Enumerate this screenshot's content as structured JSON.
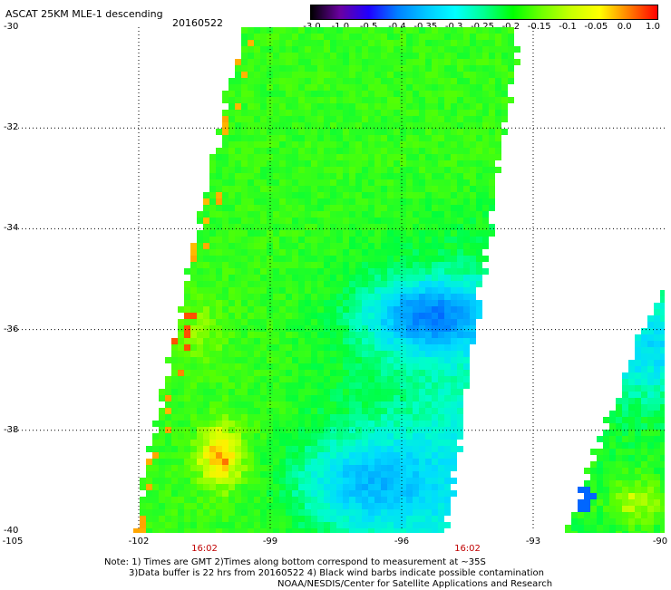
{
  "header": {
    "title": "ASCAT 25KM MLE-1 descending",
    "date": "20160522"
  },
  "colorbar": {
    "labels": [
      "-3.0",
      "-1.0",
      "-0.5",
      "-0.4",
      "-0.35",
      "-0.3",
      "-0.25",
      "-0.2",
      "-0.15",
      "-0.1",
      "-0.05",
      "0.0",
      "1.0"
    ],
    "colors": [
      "#000000",
      "#6a00a0",
      "#2000ff",
      "#0080ff",
      "#00c8ff",
      "#00ffff",
      "#00ff90",
      "#00ff00",
      "#70ff00",
      "#c8ff00",
      "#ffff00",
      "#ff8000",
      "#ff0000"
    ]
  },
  "map": {
    "lat_labels": [
      "-30",
      "-32",
      "-34",
      "-36",
      "-38",
      "-40"
    ],
    "lon_labels": [
      "-105",
      "-102",
      "-99",
      "-96",
      "-93",
      "-90"
    ],
    "lat_values": [
      -30,
      -32,
      -34,
      -36,
      -38,
      -40
    ],
    "lon_values": [
      -105,
      -102,
      -99,
      -96,
      -93,
      -90
    ],
    "time_labels": [
      "16:02",
      "16:02"
    ],
    "time_lon": [
      -100.5,
      -94.5
    ],
    "colors": {
      "time": "#c00000",
      "grid": "#000000"
    }
  },
  "notes": {
    "line1": "Note: 1) Times are GMT 2)Times along bottom correspond to measurement at ~35S",
    "line2": "3)Data buffer is 22 hrs from 20160522 4) Black wind barbs indicate possible contamination",
    "line3": "NOAA/NESDIS/Center for Satellite Applications and Research"
  }
}
